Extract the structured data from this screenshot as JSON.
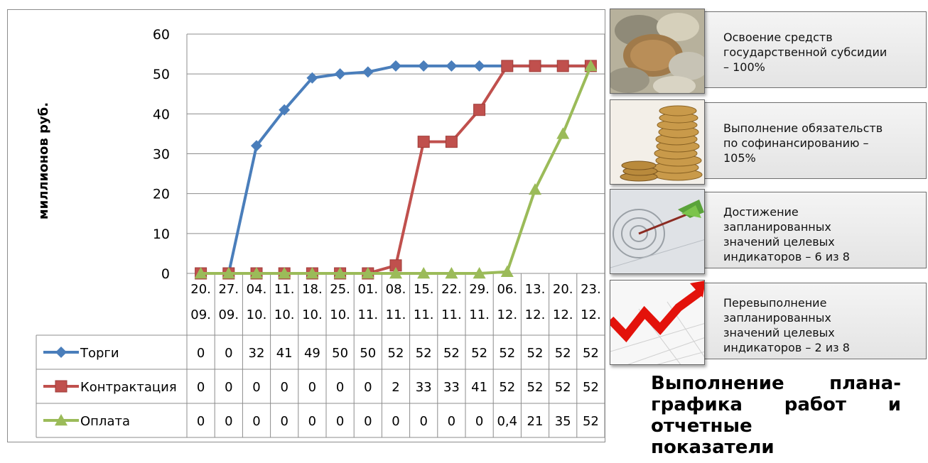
{
  "chart_data": {
    "type": "line",
    "ylabel": "миллионов руб.",
    "ylim": [
      0,
      60
    ],
    "yticks": [
      "60",
      "50",
      "40",
      "30",
      "20",
      "10",
      "0"
    ],
    "categories": [
      [
        "20.",
        "09."
      ],
      [
        "27.",
        "09."
      ],
      [
        "04.",
        "10."
      ],
      [
        "11.",
        "10."
      ],
      [
        "18.",
        "10."
      ],
      [
        "25.",
        "10."
      ],
      [
        "01.",
        "11."
      ],
      [
        "08.",
        "11."
      ],
      [
        "15.",
        "11."
      ],
      [
        "22.",
        "11."
      ],
      [
        "29.",
        "11."
      ],
      [
        "06.",
        "12."
      ],
      [
        "13.",
        "12."
      ],
      [
        "20.",
        "12."
      ],
      [
        "23.",
        "12."
      ]
    ],
    "series": [
      {
        "name": "Торги",
        "color": "#4a7ebb",
        "marker": "diamond",
        "values": [
          0,
          0,
          32,
          41,
          49,
          50,
          50.5,
          52,
          52,
          52,
          52,
          52,
          52,
          52,
          52
        ],
        "labels": [
          "0",
          "0",
          "32",
          "41",
          "49",
          "50",
          "50",
          "52",
          "52",
          "52",
          "52",
          "52",
          "52",
          "52",
          "52"
        ]
      },
      {
        "name": "Контрактация",
        "color": "#c0504d",
        "marker": "square",
        "values": [
          0,
          0,
          0,
          0,
          0,
          0,
          0,
          2,
          33,
          33,
          41,
          52,
          52,
          52,
          52
        ],
        "labels": [
          "0",
          "0",
          "0",
          "0",
          "0",
          "0",
          "0",
          "2",
          "33",
          "33",
          "41",
          "52",
          "52",
          "52",
          "52"
        ]
      },
      {
        "name": "Оплата",
        "color": "#9bbb59",
        "marker": "triangle",
        "values": [
          0,
          0,
          0,
          0,
          0,
          0,
          0,
          0,
          0,
          0,
          0,
          0.4,
          21,
          35,
          52
        ],
        "labels": [
          "0",
          "0",
          "0",
          "0",
          "0",
          "0",
          "0",
          "0",
          "0",
          "0",
          "0",
          "0,4",
          "21",
          "35",
          "52"
        ]
      }
    ]
  },
  "cards": [
    {
      "icon": "coins-icon",
      "lines": [
        "Освоение средств",
        "государственной субсидии",
        "– 100%"
      ]
    },
    {
      "icon": "coin-stack-icon",
      "lines": [
        "Выполнение обязательств",
        "по софинансированию –",
        "105%"
      ]
    },
    {
      "icon": "target-icon",
      "lines": [
        "Достижение",
        "запланированных",
        "значений целевых",
        "индикаторов – 6 из 8"
      ]
    },
    {
      "icon": "growth-arrow-icon",
      "lines": [
        "Перевыполнение",
        "запланированных",
        "значений целевых",
        "индикаторов – 2 из 8"
      ]
    }
  ],
  "caption": {
    "lines": [
      "Выполнение плана-",
      "графика работ и",
      "отчетные",
      "показатели"
    ]
  }
}
